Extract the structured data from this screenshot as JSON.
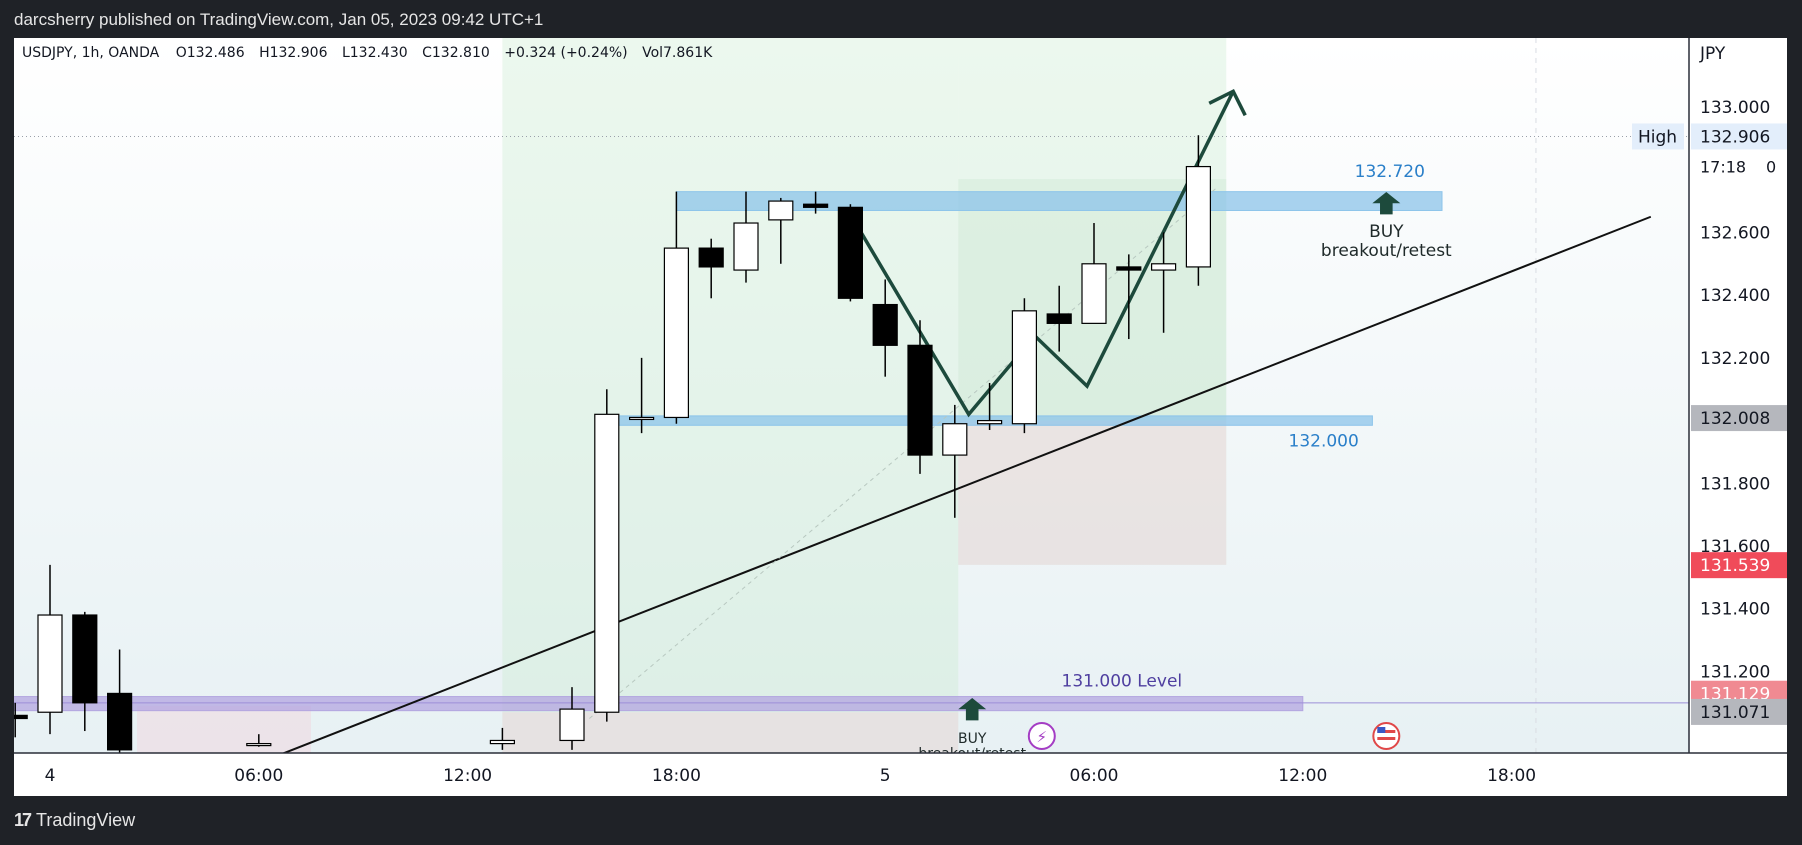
{
  "header": {
    "publisher_line": "darcsherry published on TradingView.com, Jan 05, 2023 09:42 UTC+1"
  },
  "footer": {
    "brand": "TradingView",
    "brand_icon": "tradingview-logo-icon"
  },
  "legend": {
    "symbol": "USDJPY, 1h, OANDA",
    "open": "O132.486",
    "high": "H132.906",
    "low": "L132.430",
    "close": "C132.810",
    "change": "+0.324 (+0.24%)",
    "volume": "Vol7.861K"
  },
  "colors": {
    "bull_candle": "#ffffff",
    "bear_candle": "#000000",
    "zone_blue": "#8cc4ea",
    "zone_purple": "#b3a6e0",
    "label_blue": "#2a7fc9",
    "label_purple": "#4f3fa0",
    "path_arrow": "#1d4a3c",
    "price_red": "#f04b5a",
    "price_pink": "#f08a92",
    "price_grey": "#b5b7bd",
    "event_purple": "#a43dc4",
    "event_flag_red": "#e04848"
  },
  "chart_data": {
    "type": "candlestick",
    "symbol": "USDJPY",
    "timeframe": "1h",
    "currency": "JPY",
    "y_axis": {
      "ticks": [
        "133.000",
        "132.600",
        "132.400",
        "132.200",
        "131.800",
        "131.600",
        "131.400",
        "131.200"
      ],
      "range": [
        130.94,
        133.22
      ]
    },
    "x_axis": {
      "ticks": [
        "4",
        "06:00",
        "12:00",
        "18:00",
        "5",
        "06:00",
        "12:00",
        "18:00"
      ],
      "tick_hours": [
        0,
        6,
        12,
        18,
        24,
        30,
        36,
        42
      ]
    },
    "candles": [
      {
        "t": -1,
        "o": 131.06,
        "h": 131.1,
        "l": 130.99,
        "c": 131.05
      },
      {
        "t": 0,
        "o": 131.07,
        "h": 131.54,
        "l": 131.0,
        "c": 131.38
      },
      {
        "t": 1,
        "o": 131.38,
        "h": 131.39,
        "l": 131.01,
        "c": 131.1
      },
      {
        "t": 2,
        "o": 131.13,
        "h": 131.27,
        "l": 130.93,
        "c": 130.95
      },
      {
        "t": 6,
        "o": 130.97,
        "h": 131.0,
        "l": 130.96,
        "c": 130.97
      },
      {
        "t": 13,
        "o": 130.97,
        "h": 131.02,
        "l": 130.95,
        "c": 130.98
      },
      {
        "t": 15,
        "o": 130.98,
        "h": 131.15,
        "l": 130.95,
        "c": 131.08
      },
      {
        "t": 16,
        "o": 131.07,
        "h": 132.1,
        "l": 131.04,
        "c": 132.02
      },
      {
        "t": 17,
        "o": 132.01,
        "h": 132.2,
        "l": 131.96,
        "c": 132.01
      },
      {
        "t": 18,
        "o": 132.01,
        "h": 132.73,
        "l": 131.99,
        "c": 132.55
      },
      {
        "t": 19,
        "o": 132.55,
        "h": 132.58,
        "l": 132.39,
        "c": 132.49
      },
      {
        "t": 20,
        "o": 132.48,
        "h": 132.73,
        "l": 132.44,
        "c": 132.63
      },
      {
        "t": 21,
        "o": 132.64,
        "h": 132.71,
        "l": 132.5,
        "c": 132.7
      },
      {
        "t": 22,
        "o": 132.69,
        "h": 132.73,
        "l": 132.66,
        "c": 132.68
      },
      {
        "t": 23,
        "o": 132.68,
        "h": 132.69,
        "l": 132.38,
        "c": 132.39
      },
      {
        "t": 24,
        "o": 132.37,
        "h": 132.45,
        "l": 132.14,
        "c": 132.24
      },
      {
        "t": 25,
        "o": 132.24,
        "h": 132.32,
        "l": 131.83,
        "c": 131.89
      },
      {
        "t": 26,
        "o": 131.89,
        "h": 132.05,
        "l": 131.69,
        "c": 131.99
      },
      {
        "t": 27,
        "o": 131.99,
        "h": 132.12,
        "l": 131.97,
        "c": 132.0
      },
      {
        "t": 28,
        "o": 131.99,
        "h": 132.39,
        "l": 131.96,
        "c": 132.35
      },
      {
        "t": 29,
        "o": 132.34,
        "h": 132.43,
        "l": 132.22,
        "c": 132.31
      },
      {
        "t": 30,
        "o": 132.31,
        "h": 132.63,
        "l": 132.31,
        "c": 132.5
      },
      {
        "t": 31,
        "o": 132.49,
        "h": 132.53,
        "l": 132.26,
        "c": 132.48
      },
      {
        "t": 32,
        "o": 132.48,
        "h": 132.6,
        "l": 132.28,
        "c": 132.5
      },
      {
        "t": 33,
        "o": 132.49,
        "h": 132.91,
        "l": 132.43,
        "c": 132.81
      }
    ],
    "zones": [
      {
        "name": "132.720",
        "from": 132.67,
        "to": 132.73,
        "t_start": 18,
        "t_end": 40
      },
      {
        "name": "132.000",
        "from": 131.985,
        "to": 132.015,
        "t_start": 16,
        "t_end": 38
      },
      {
        "name": "131.000 Level",
        "from": 131.075,
        "to": 131.12,
        "t_start": -2,
        "t_end": 36
      }
    ],
    "annotations": {
      "zone_label_high": "132.720",
      "zone_label_mid": "132.000",
      "zone_label_low": "131.000 Level",
      "buy_upper": "BUY",
      "breakout_upper": "breakout/retest",
      "buy_lower": "BUY",
      "breakout_lower": "breakout/retest"
    },
    "price_scale_labels": {
      "currency": "JPY",
      "high_tag": "High",
      "high_value": "132.906",
      "countdown": "17:18",
      "countdown_suffix": "0",
      "level_grey": "132.008",
      "level_red": "131.539",
      "level_pink": "131.129",
      "level_grey2": "131.071"
    },
    "trendline": {
      "t1": 6.5,
      "p1": 130.93,
      "t2": 46,
      "p2": 132.65
    },
    "projection_path": [
      [
        23.2,
        132.62
      ],
      [
        26.4,
        132.02
      ],
      [
        28.3,
        132.27
      ],
      [
        29.8,
        132.11
      ],
      [
        34.0,
        133.05
      ]
    ],
    "position_boxes": [
      {
        "kind": "profit",
        "t_start": 13,
        "t_end": 26.1,
        "top": 133.22,
        "bottom": 130.88
      },
      {
        "kind": "loss",
        "t_start": 13,
        "t_end": 26.1,
        "top": 131.07,
        "bottom": 130.88
      },
      {
        "kind": "profit",
        "t_start": 26.1,
        "t_end": 33.8,
        "top": 133.22,
        "bottom": 131.54
      },
      {
        "kind": "profit2",
        "t_start": 26.1,
        "t_end": 33.8,
        "top": 132.77,
        "bottom": 132.0
      },
      {
        "kind": "loss",
        "t_start": 26.1,
        "t_end": 33.8,
        "top": 132.0,
        "bottom": 131.54
      },
      {
        "kind": "loss",
        "t_start": 2.5,
        "t_end": 7.5,
        "top": 131.09,
        "bottom": 130.88
      }
    ],
    "grid": false,
    "legend_position": "top-left"
  }
}
